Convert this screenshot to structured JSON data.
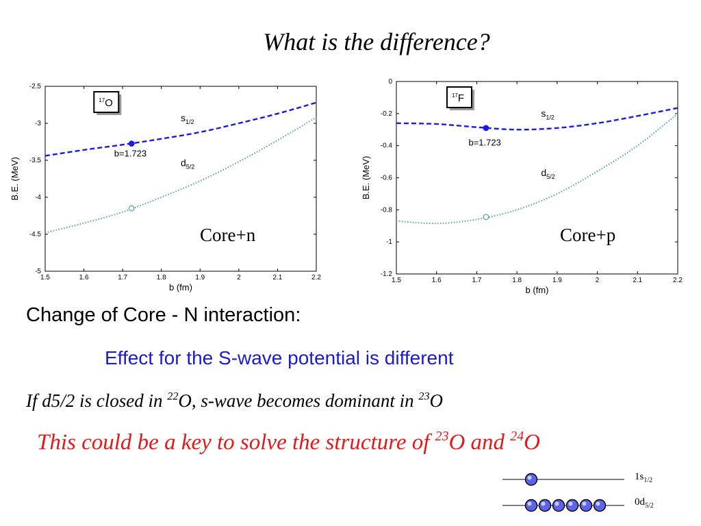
{
  "title": "What is the difference?",
  "chart_data": [
    {
      "type": "line",
      "inset_label": {
        "mass": "17",
        "symbol": "O"
      },
      "xlabel": "b (fm)",
      "ylabel": "B.E. (MeV)",
      "xlim": [
        1.5,
        2.2
      ],
      "ylim": [
        -5,
        -2.5
      ],
      "xticks": [
        "1.5",
        "1.6",
        "1.7",
        "1.8",
        "1.9",
        "2",
        "2.1",
        "2.2"
      ],
      "yticks": [
        "-2.5",
        "-3",
        "-3.5",
        "-4",
        "-4.5",
        "-5"
      ],
      "grid": false,
      "series": [
        {
          "name": "s1/2",
          "label_main": "s",
          "label_sub": "1/2",
          "style": "dashed",
          "color": "#1a1ae6",
          "x": [
            1.5,
            1.6,
            1.7,
            1.8,
            1.9,
            2.0,
            2.1,
            2.2
          ],
          "y": [
            -3.44,
            -3.36,
            -3.29,
            -3.21,
            -3.12,
            -3.0,
            -2.87,
            -2.72
          ]
        },
        {
          "name": "d5/2",
          "label_main": "d",
          "label_sub": "5/2",
          "style": "dotted",
          "color": "#4a9fa6",
          "x": [
            1.5,
            1.6,
            1.7,
            1.8,
            1.9,
            2.0,
            2.1,
            2.2
          ],
          "y": [
            -4.48,
            -4.35,
            -4.2,
            -4.0,
            -3.78,
            -3.52,
            -3.23,
            -2.92
          ]
        }
      ],
      "markers": [
        {
          "x": 1.723,
          "y": -3.275,
          "filled": true,
          "color": "#1a1ae6"
        },
        {
          "x": 1.723,
          "y": -4.15,
          "filled": false,
          "color": "#4a9fa6"
        }
      ],
      "annotations": [
        {
          "text": "b=1.723",
          "x": 1.72,
          "y": -3.45
        }
      ],
      "series_label_positions": [
        {
          "x": 1.85,
          "y": -2.97
        },
        {
          "x": 1.85,
          "y": -3.58
        }
      ],
      "core_label": "Core+n"
    },
    {
      "type": "line",
      "inset_label": {
        "mass": "17",
        "symbol": "F"
      },
      "xlabel": "b (fm)",
      "ylabel": "B.E. (MeV)",
      "xlim": [
        1.5,
        2.2
      ],
      "ylim": [
        -1.2,
        0
      ],
      "xticks": [
        "1.5",
        "1.6",
        "1.7",
        "1.8",
        "1.9",
        "2",
        "2.1",
        "2.2"
      ],
      "yticks": [
        "0",
        "-0.2",
        "-0.4",
        "-0.6",
        "-0.8",
        "-1",
        "-1.2"
      ],
      "grid": false,
      "series": [
        {
          "name": "s1/2",
          "label_main": "s",
          "label_sub": "1/2",
          "style": "dashed",
          "color": "#1a1ae6",
          "x": [
            1.5,
            1.6,
            1.7,
            1.8,
            1.9,
            2.0,
            2.1,
            2.2
          ],
          "y": [
            -0.26,
            -0.265,
            -0.285,
            -0.3,
            -0.29,
            -0.26,
            -0.215,
            -0.165
          ]
        },
        {
          "name": "d5/2",
          "label_main": "d",
          "label_sub": "5/2",
          "style": "dotted",
          "color": "#4a9fa6",
          "x": [
            1.5,
            1.6,
            1.7,
            1.8,
            1.9,
            2.0,
            2.1,
            2.2
          ],
          "y": [
            -0.87,
            -0.885,
            -0.86,
            -0.8,
            -0.7,
            -0.56,
            -0.4,
            -0.2
          ]
        }
      ],
      "markers": [
        {
          "x": 1.723,
          "y": -0.29,
          "filled": true,
          "color": "#1a1ae6"
        },
        {
          "x": 1.723,
          "y": -0.845,
          "filled": false,
          "color": "#4a9fa6"
        }
      ],
      "annotations": [
        {
          "text": "b=1.723",
          "x": 1.72,
          "y": -0.4
        }
      ],
      "series_label_positions": [
        {
          "x": 1.86,
          "y": -0.22
        },
        {
          "x": 1.86,
          "y": -0.59
        }
      ],
      "core_label": "Core+p"
    }
  ],
  "text": {
    "change_label": "Change of Core - N interaction:",
    "effect_label": "Effect for the S-wave potential is different",
    "closed_line": {
      "p1": "If d5/2 is closed in ",
      "m1": "22",
      "p2": "O, s-wave becomes dominant in ",
      "m2": "23",
      "p3": "O"
    },
    "key_line": {
      "p1": "This could be a key to solve the structure of ",
      "m1": "23",
      "p2": "O and ",
      "m2": "24",
      "p3": "O"
    }
  },
  "levels": [
    {
      "main": "1s",
      "sub": "1/2",
      "occupancy": 1
    },
    {
      "main": "0d",
      "sub": "5/2",
      "occupancy": 6
    }
  ],
  "colors": {
    "s_series": "#1a1ae6",
    "d_series": "#4a9fa6",
    "effect_text": "#1a1ad6",
    "key_text": "#e21a1a",
    "nucleon_fill": "#5c64e8"
  }
}
